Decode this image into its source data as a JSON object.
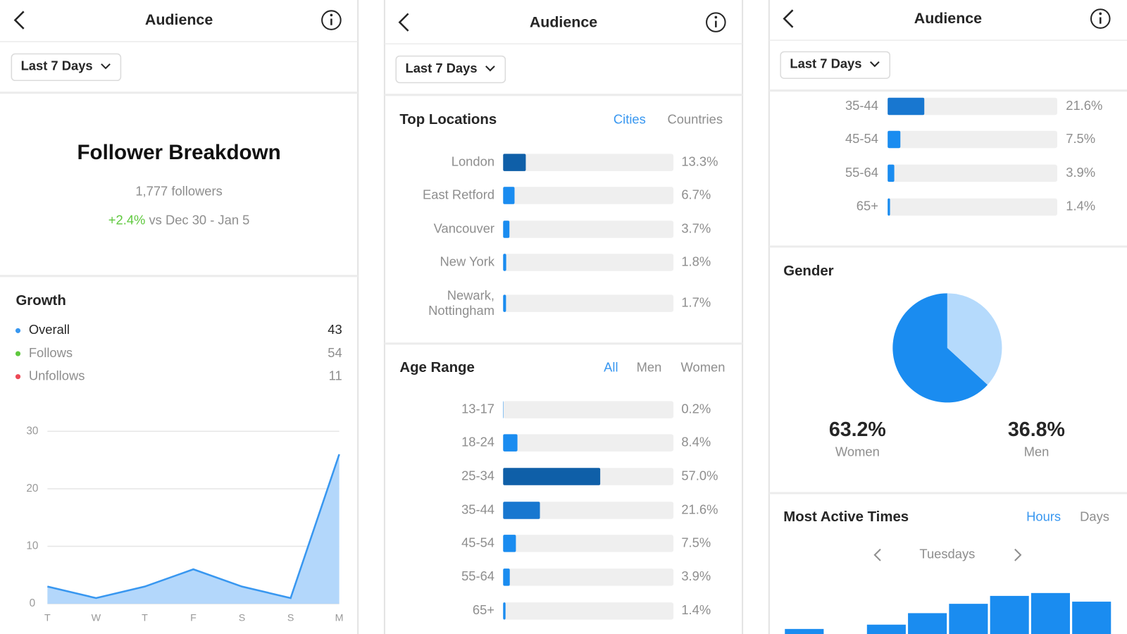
{
  "panels": [
    {
      "header": {
        "title": "Audience"
      },
      "filter": "Last 7 Days",
      "summary": {
        "title": "Follower Breakdown",
        "followers": "1,777 followers",
        "change": "+2.4%",
        "comparison": "vs Dec 30 - Jan 5"
      },
      "growth": {
        "title": "Growth",
        "legend": [
          {
            "name": "Overall",
            "value": 43,
            "color": "#3897f0"
          },
          {
            "name": "Follows",
            "value": 54,
            "color": "#5fc83e"
          },
          {
            "name": "Unfollows",
            "value": 11,
            "color": "#ed4956"
          }
        ],
        "chart_data": {
          "type": "area",
          "x": [
            "T",
            "W",
            "T",
            "F",
            "S",
            "S",
            "M"
          ],
          "values": [
            3,
            1,
            3,
            6,
            3,
            1,
            26
          ],
          "ylim": [
            0,
            30
          ],
          "yticks": [
            0,
            10,
            20,
            30
          ],
          "color": "#3897f0",
          "fill": "#b3d7fb",
          "grid": true
        }
      }
    },
    {
      "header": {
        "title": "Audience"
      },
      "filter": "Last 7 Days",
      "top_locations": {
        "title": "Top Locations",
        "tabs": [
          "Cities",
          "Countries"
        ],
        "active_tab": 0,
        "chart_data": {
          "type": "hbar",
          "categories": [
            "London",
            "East Retford",
            "Vancouver",
            "New York",
            "Newark, Nottingham"
          ],
          "values": [
            13.3,
            6.7,
            3.7,
            1.8,
            1.7
          ],
          "value_labels": [
            "13.3%",
            "6.7%",
            "3.7%",
            "1.8%",
            "1.7%"
          ],
          "colors": [
            "#0f5fa8",
            "#1a8cf0",
            "#1a8cf0",
            "#1a8cf0",
            "#1a8cf0"
          ],
          "xlim": [
            0,
            100
          ]
        }
      },
      "age_range": {
        "title": "Age Range",
        "tabs": [
          "All",
          "Men",
          "Women"
        ],
        "active_tab": 0,
        "chart_data": {
          "type": "hbar",
          "categories": [
            "13-17",
            "18-24",
            "25-34",
            "35-44",
            "45-54",
            "55-64",
            "65+"
          ],
          "values": [
            0.2,
            8.4,
            57.0,
            21.6,
            7.5,
            3.9,
            1.4
          ],
          "value_labels": [
            "0.2%",
            "8.4%",
            "57.0%",
            "21.6%",
            "7.5%",
            "3.9%",
            "1.4%"
          ],
          "colors": [
            "#1a8cf0",
            "#1a8cf0",
            "#0f5fa8",
            "#1877d0",
            "#1a8cf0",
            "#1a8cf0",
            "#1a8cf0"
          ],
          "xlim": [
            0,
            100
          ]
        }
      }
    },
    {
      "header": {
        "title": "Audience"
      },
      "filter": "Last 7 Days",
      "age_range": {
        "chart_data": {
          "type": "hbar",
          "categories": [
            "35-44",
            "45-54",
            "55-64",
            "65+"
          ],
          "values": [
            21.6,
            7.5,
            3.9,
            1.4
          ],
          "value_labels": [
            "21.6%",
            "7.5%",
            "3.9%",
            "1.4%"
          ],
          "colors": [
            "#1877d0",
            "#1a8cf0",
            "#1a8cf0",
            "#1a8cf0"
          ],
          "xlim": [
            0,
            100
          ]
        }
      },
      "gender": {
        "title": "Gender",
        "chart_data": {
          "type": "pie",
          "categories": [
            "Women",
            "Men"
          ],
          "values": [
            63.2,
            36.8
          ],
          "value_labels": [
            "63.2%",
            "36.8%"
          ],
          "colors": [
            "#1a8cf0",
            "#b5dafc"
          ]
        }
      },
      "active_times": {
        "title": "Most Active Times",
        "tabs": [
          "Hours",
          "Days"
        ],
        "active_tab": 0,
        "day": "Tuesdays",
        "chart_data": {
          "type": "bar",
          "values": [
            7,
            0,
            13,
            29,
            42,
            53,
            57,
            45
          ],
          "ylim": [
            0,
            60
          ],
          "color": "#1a8cf0"
        }
      }
    }
  ]
}
